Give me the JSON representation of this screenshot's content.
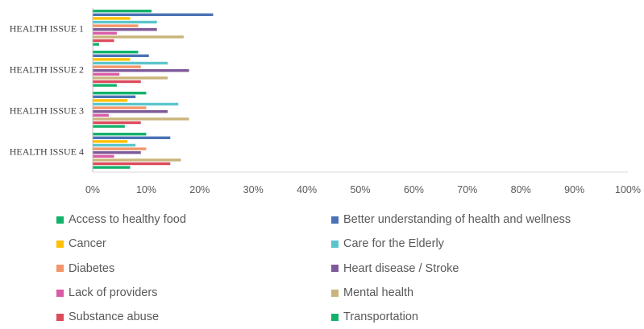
{
  "chart_data": {
    "type": "bar",
    "orientation": "horizontal",
    "categories": [
      "HEALTH ISSUE 1",
      "HEALTH ISSUE 2",
      "HEALTH ISSUE 3",
      "HEALTH ISSUE 4"
    ],
    "xlim": [
      0,
      100
    ],
    "x_tick_labels": [
      "0%",
      "10%",
      "20%",
      "30%",
      "40%",
      "50%",
      "60%",
      "70%",
      "80%",
      "90%",
      "100%"
    ],
    "grid": false,
    "legend_position": "bottom",
    "series": [
      {
        "name": "Access to healthy food",
        "color": "#13B26B",
        "values": [
          11,
          8.5,
          10,
          10
        ]
      },
      {
        "name": "Better understanding of health and wellness",
        "color": "#4A72B5",
        "values": [
          22.5,
          10.5,
          8,
          14.5
        ]
      },
      {
        "name": "Cancer",
        "color": "#FFC000",
        "values": [
          7,
          7,
          6.5,
          6.5
        ]
      },
      {
        "name": "Care for the Elderly",
        "color": "#5BC5CC",
        "values": [
          12,
          14,
          16,
          8
        ]
      },
      {
        "name": "Diabetes",
        "color": "#F4956A",
        "values": [
          8.5,
          9,
          10,
          10
        ]
      },
      {
        "name": "Heart disease / Stroke",
        "color": "#7F5A9A",
        "values": [
          12,
          18,
          14,
          9
        ]
      },
      {
        "name": "Lack of providers",
        "color": "#D95BA6",
        "values": [
          4.5,
          5,
          3,
          4
        ]
      },
      {
        "name": "Mental health",
        "color": "#C9B57C",
        "values": [
          17,
          14,
          18,
          16.5
        ]
      },
      {
        "name": "Substance abuse",
        "color": "#DC4B5C",
        "values": [
          4,
          9,
          9,
          14.5
        ]
      },
      {
        "name": "Transportation",
        "color": "#13B26B",
        "values": [
          1.2,
          4.5,
          6,
          7
        ]
      }
    ]
  }
}
